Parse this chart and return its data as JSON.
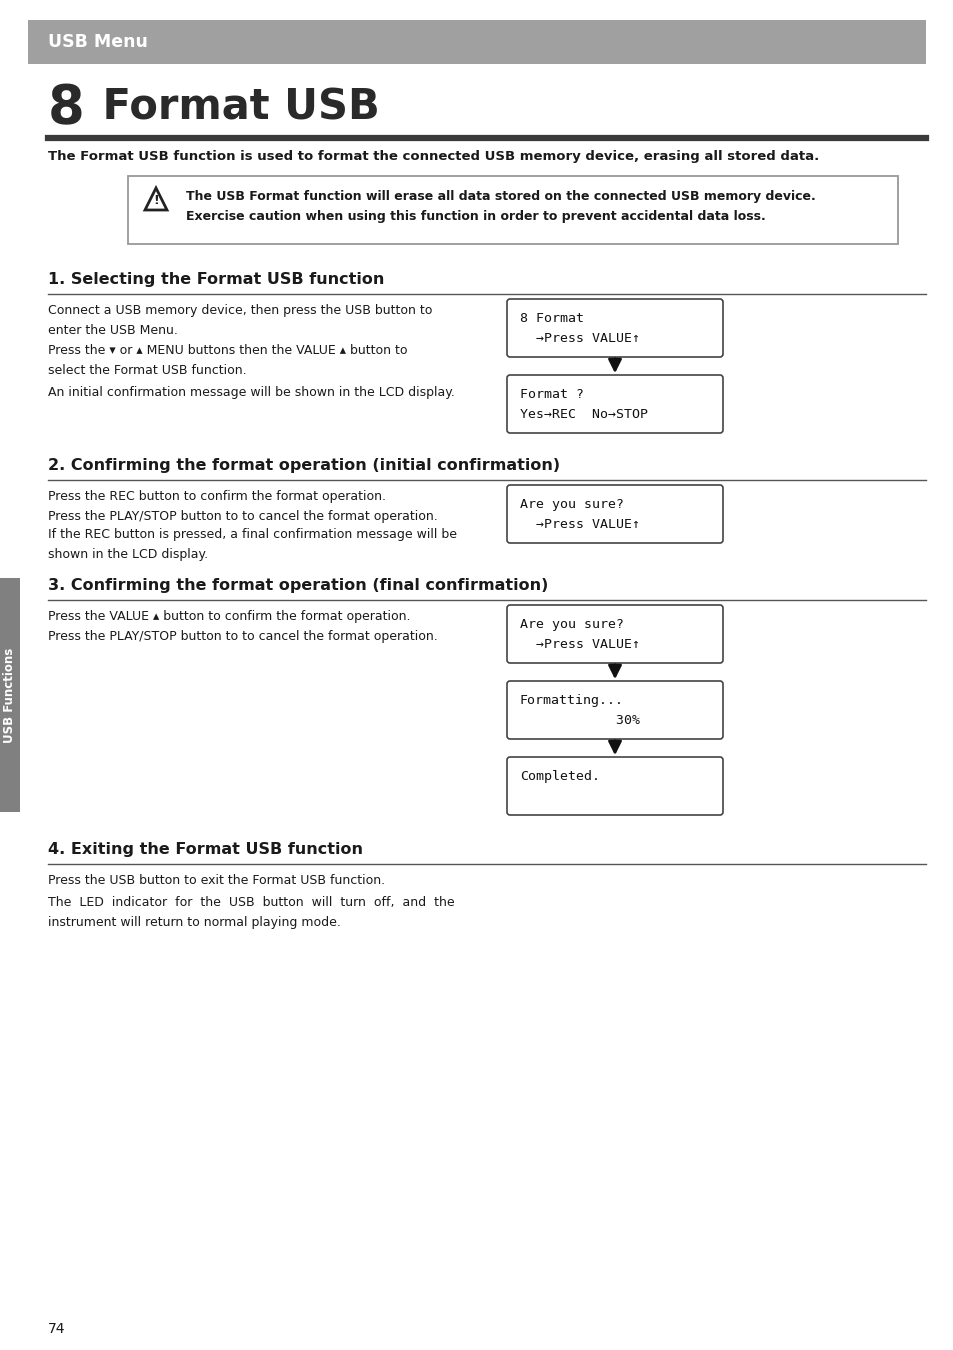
{
  "page_bg": "#ffffff",
  "header_bg": "#a0a0a0",
  "header_text": "USB Menu",
  "header_text_color": "#ffffff",
  "chapter_num": "8",
  "chapter_title": " Format USB",
  "chapter_line_color": "#3a3a3a",
  "intro_text": "The Format USB function is used to format the connected USB memory device, erasing all stored data.",
  "warning_box_text1": "The USB Format function will erase all data stored on the connected USB memory device.",
  "warning_box_text2": "Exercise caution when using this function in order to prevent accidental data loss.",
  "section1_title": "1. Selecting the Format USB function",
  "section1_para1": "Connect a USB memory device, then press the USB button to\nenter the USB Menu.",
  "section1_para2": "Press the ▾ or ▴ MENU buttons then the VALUE ▴ button to\nselect the Format USB function.",
  "section1_para3": "An initial confirmation message will be shown in the LCD display.",
  "lcd1_line1": "8 Format",
  "lcd1_line2": "  →Press VALUE↑",
  "lcd2_line1": "Format ?",
  "lcd2_line2": "Yes→REC  No→STOP",
  "section2_title": "2. Confirming the format operation (initial confirmation)",
  "section2_para1": "Press the REC button to confirm the format operation.\nPress the PLAY/STOP button to to cancel the format operation.",
  "section2_para2": "If the REC button is pressed, a final confirmation message will be\nshown in the LCD display.",
  "lcd3_line1": "Are you sure?",
  "lcd3_line2": "  →Press VALUE↑",
  "section3_title": "3. Confirming the format operation (final confirmation)",
  "section3_para1": "Press the VALUE ▴ button to confirm the format operation.\nPress the PLAY/STOP button to to cancel the format operation.",
  "lcd4_line1": "Are you sure?",
  "lcd4_line2": "  →Press VALUE↑",
  "lcd5_line1": "Formatting...",
  "lcd5_line2": "            30%",
  "lcd6_line1": "Completed.",
  "lcd6_line2": "",
  "section4_title": "4. Exiting the Format USB function",
  "section4_para1": "Press the USB button to exit the Format USB function.",
  "section4_para2": "The  LED  indicator  for  the  USB  button  will  turn  off,  and  the\ninstrument will return to normal playing mode.",
  "sidebar_text": "USB Functions",
  "sidebar_bg": "#808080",
  "page_num": "74",
  "title_color": "#2a2a2a",
  "body_color": "#1a1a1a",
  "section_title_color": "#1a1a1a"
}
